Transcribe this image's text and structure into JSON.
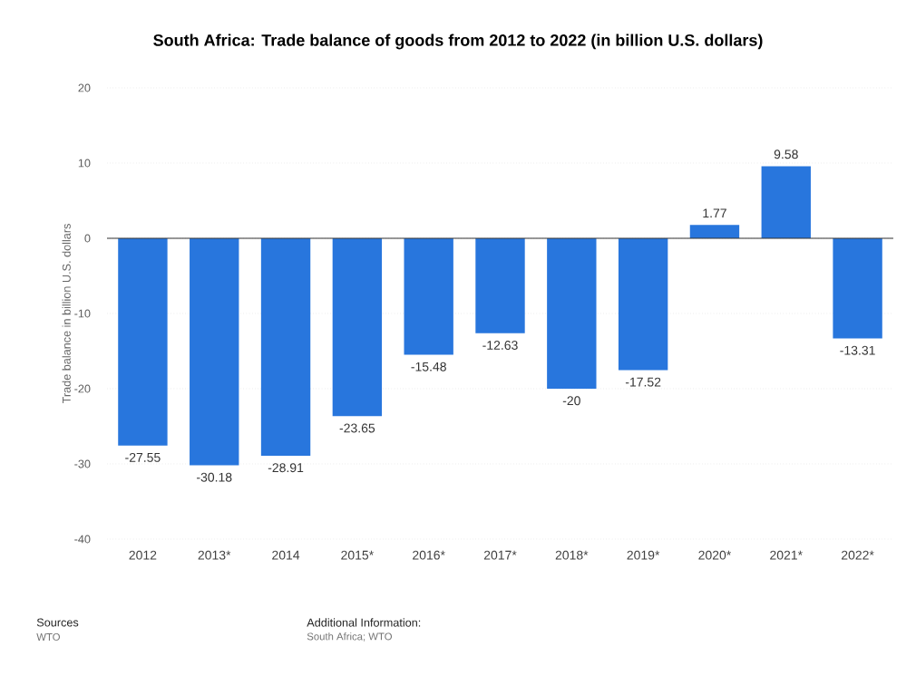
{
  "chart_data": {
    "type": "bar",
    "title": "South Africa: Trade balance of goods from 2012 to 2022 (in billion U.S. dollars)",
    "ylabel": "Trade balance in billion U.S. dollars",
    "categories": [
      "2012",
      "2013*",
      "2014",
      "2015*",
      "2016*",
      "2017*",
      "2018*",
      "2019*",
      "2020*",
      "2021*",
      "2022*"
    ],
    "values": [
      -27.55,
      -30.18,
      -28.91,
      -23.65,
      -15.48,
      -12.63,
      -20,
      -17.52,
      1.77,
      9.58,
      -13.31
    ],
    "color": "#2876dd",
    "ylim": [
      -40,
      20
    ],
    "yticks": [
      -40,
      -30,
      -20,
      -10,
      0,
      10,
      20
    ],
    "grid": "y",
    "data_labels": true,
    "annotations": [
      "Sources",
      "WTO",
      "Additional Information:",
      "South Africa; WTO"
    ]
  }
}
